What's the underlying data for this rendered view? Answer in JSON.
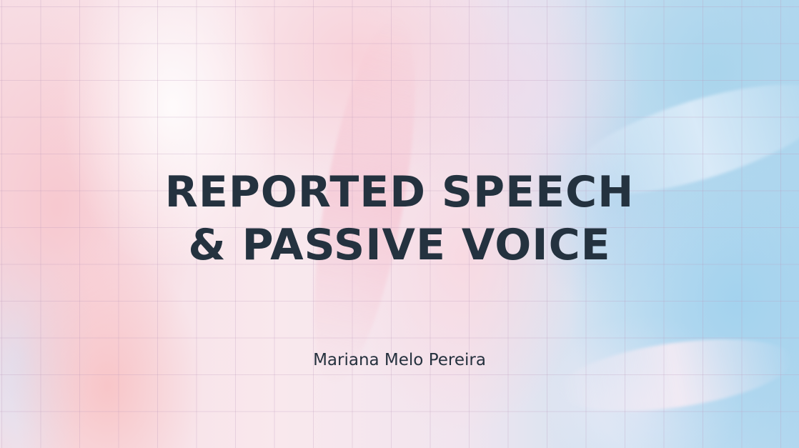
{
  "slide": {
    "title_lines": [
      "REPORTED SPEECH",
      "& PASSIVE VOICE"
    ],
    "author": "Mariana Melo Pereira"
  }
}
